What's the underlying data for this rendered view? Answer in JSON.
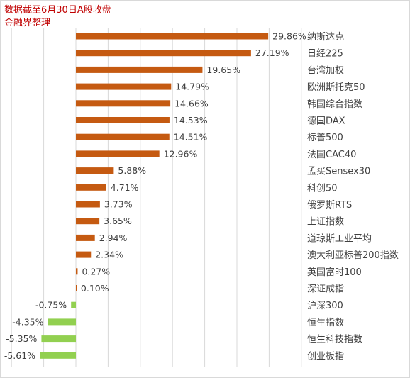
{
  "note": {
    "line1": "数据截至6月30日A股收盘",
    "line2": "金融界整理"
  },
  "colors": {
    "positive": "#c55a11",
    "negative": "#92d050",
    "grid": "#d9d9d9",
    "note": "#c00000"
  },
  "chart_data": {
    "type": "bar",
    "orientation": "horizontal",
    "categories": [
      "纳斯达克",
      "日经225",
      "台湾加权",
      "欧洲斯托克50",
      "韩国综合指数",
      "德国DAX",
      "标普500",
      "法国CAC40",
      "孟买Sensex30",
      "科创50",
      "俄罗斯RTS",
      "上证指数",
      "道琼斯工业平均",
      "澳大利亚标普200指数",
      "英国富时100",
      "深证成指",
      "沪深300",
      "恒生指数",
      "恒生科技指数",
      "创业板指"
    ],
    "values": [
      29.86,
      27.19,
      19.65,
      14.79,
      14.66,
      14.53,
      14.51,
      12.96,
      5.88,
      4.71,
      3.73,
      3.65,
      2.94,
      2.34,
      0.27,
      0.1,
      -0.75,
      -4.35,
      -5.35,
      -5.61
    ],
    "value_labels": [
      "29.86%",
      "27.19%",
      "19.65%",
      "14.79%",
      "14.66%",
      "14.53%",
      "14.51%",
      "12.96%",
      "5.88%",
      "4.71%",
      "3.73%",
      "3.65%",
      "2.94%",
      "2.34%",
      "0.27%",
      "0.10%",
      "-0.75%",
      "-4.35%",
      "-5.35%",
      "-5.61%"
    ],
    "xlim": [
      -10,
      35
    ],
    "grid": true
  }
}
